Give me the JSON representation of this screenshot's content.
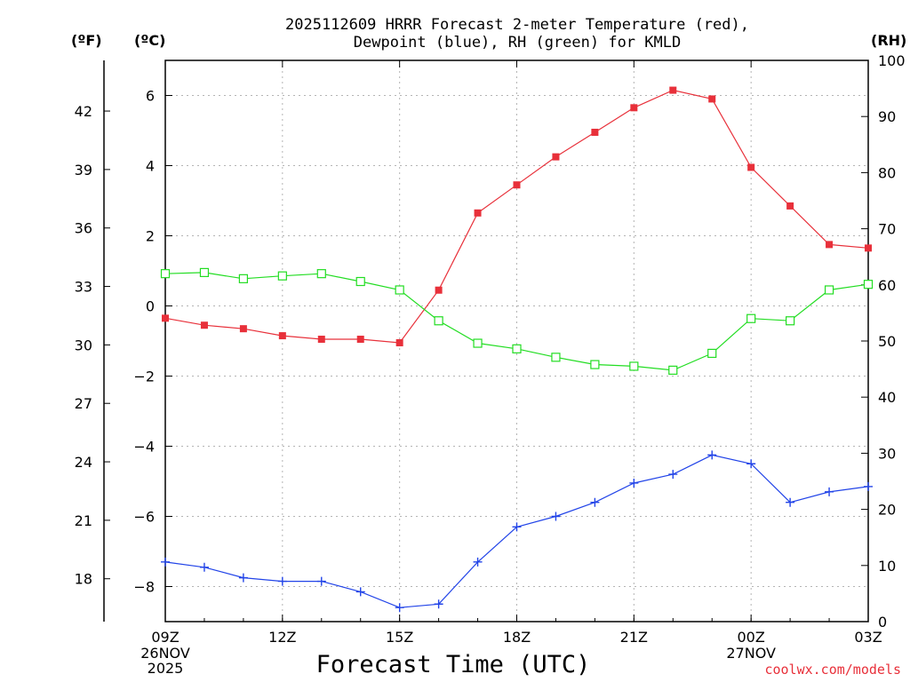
{
  "title_line1": "2025112609 HRRR Forecast 2-meter Temperature (red),",
  "title_line2": "Dewpoint (blue), RH (green) for KMLD",
  "unit_f": "(ºF)",
  "unit_c": "(ºC)",
  "unit_rh": "(RH)",
  "source": "coolwx.com/models",
  "chart_data": {
    "type": "line",
    "title": "2025112609 HRRR Forecast 2-meter Temperature (red), Dewpoint (blue), RH (green) for KMLD",
    "xlabel": "Forecast Time (UTC)",
    "ylabel_left": "(ºC)",
    "ylabel_far_left": "(ºF)",
    "ylabel_right": "(RH)",
    "x_hours": [
      0,
      1,
      2,
      3,
      4,
      5,
      6,
      7,
      8,
      9,
      10,
      11,
      12,
      13,
      14,
      15,
      16,
      17,
      18
    ],
    "x_range": [
      0,
      18
    ],
    "x_ticks": [
      {
        "h": 0,
        "label": "09Z",
        "sub": [
          "26NOV",
          "2025"
        ]
      },
      {
        "h": 3,
        "label": "12Z"
      },
      {
        "h": 6,
        "label": "15Z"
      },
      {
        "h": 9,
        "label": "18Z"
      },
      {
        "h": 12,
        "label": "21Z"
      },
      {
        "h": 15,
        "label": "00Z",
        "sub": [
          "27NOV"
        ]
      },
      {
        "h": 18,
        "label": "03Z"
      }
    ],
    "ylim_c": [
      -9,
      7
    ],
    "yticks_c": [
      "−8",
      "−6",
      "−4",
      "−2",
      "0",
      "2",
      "4",
      "6"
    ],
    "yticks_f": [
      "18",
      "21",
      "24",
      "27",
      "30",
      "33",
      "36",
      "39",
      "42"
    ],
    "ylim_rh": [
      0,
      100
    ],
    "yticks_rh": [
      "0",
      "10",
      "20",
      "30",
      "40",
      "50",
      "60",
      "70",
      "80",
      "90",
      "100"
    ],
    "grid": true,
    "series": [
      {
        "name": "Temperature",
        "axis": "C",
        "color": "#e8303a",
        "marker": "filled-square",
        "values": [
          -0.35,
          -0.55,
          -0.65,
          -0.85,
          -0.95,
          -0.95,
          -1.05,
          0.45,
          2.65,
          3.45,
          4.25,
          4.95,
          5.65,
          6.15,
          5.9,
          3.95,
          2.85,
          1.75,
          1.65
        ]
      },
      {
        "name": "Dewpoint",
        "axis": "C",
        "color": "#2244e8",
        "marker": "plus",
        "values": [
          -7.3,
          -7.45,
          -7.75,
          -7.85,
          -7.85,
          -8.15,
          -8.6,
          -8.5,
          -7.3,
          -6.3,
          -6.0,
          -5.6,
          -5.05,
          -4.8,
          -4.25,
          -4.5,
          -5.6,
          -5.3,
          -5.15
        ]
      },
      {
        "name": "RH",
        "axis": "RH",
        "color": "#22dd22",
        "marker": "open-square",
        "values": [
          62,
          62.2,
          61.1,
          61.6,
          62,
          60.6,
          59.1,
          53.6,
          49.6,
          48.6,
          47.1,
          45.8,
          45.5,
          44.8,
          47.8,
          54,
          53.6,
          59.1,
          60.1
        ]
      }
    ]
  }
}
